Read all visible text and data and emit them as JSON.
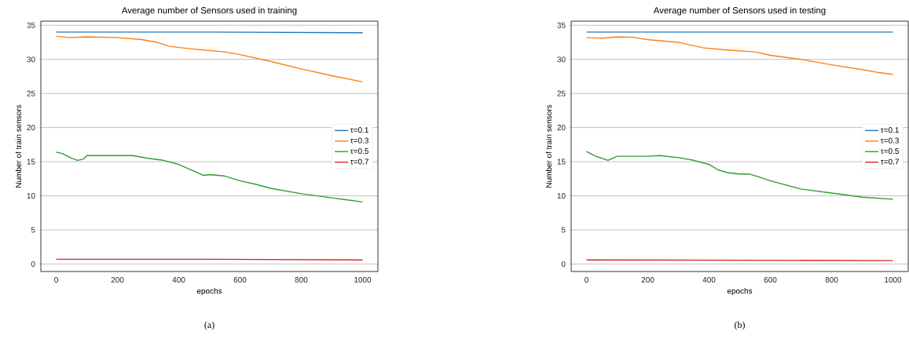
{
  "chart_data": [
    {
      "type": "line",
      "title": "Average number of Sensors used in training",
      "xlabel": "epochs",
      "ylabel": "Number of train sensors",
      "annotations": [
        "(a)"
      ],
      "xlim": [
        -50,
        1050
      ],
      "ylim": [
        -1.1,
        35.6
      ],
      "xticks": [
        0,
        200,
        400,
        600,
        800,
        1000
      ],
      "yticks": [
        0,
        5,
        10,
        15,
        20,
        25,
        30,
        35
      ],
      "grid": "y",
      "legend": "right",
      "series": [
        {
          "name": "τ=0.1",
          "color": "#1f77b4",
          "x": [
            0,
            500,
            1000
          ],
          "values": [
            34.0,
            34.0,
            33.9
          ]
        },
        {
          "name": "τ=0.3",
          "color": "#ff7f0e",
          "x": [
            0,
            40,
            100,
            200,
            280,
            330,
            370,
            450,
            550,
            600,
            700,
            800,
            900,
            1000
          ],
          "values": [
            33.4,
            33.2,
            33.3,
            33.2,
            32.9,
            32.5,
            31.9,
            31.5,
            31.1,
            30.7,
            29.7,
            28.6,
            27.6,
            26.7
          ]
        },
        {
          "name": "τ=0.5",
          "color": "#2ca02c",
          "x": [
            0,
            20,
            50,
            70,
            90,
            100,
            150,
            250,
            300,
            350,
            400,
            450,
            480,
            500,
            550,
            600,
            650,
            700,
            800,
            900,
            950,
            1000
          ],
          "values": [
            16.4,
            16.2,
            15.5,
            15.2,
            15.4,
            15.9,
            15.9,
            15.9,
            15.5,
            15.2,
            14.6,
            13.6,
            13.0,
            13.1,
            12.9,
            12.2,
            11.7,
            11.1,
            10.3,
            9.7,
            9.4,
            9.1
          ]
        },
        {
          "name": "τ=0.7",
          "color": "#d62728",
          "x": [
            0,
            500,
            1000
          ],
          "values": [
            0.7,
            0.7,
            0.6
          ]
        }
      ]
    },
    {
      "type": "line",
      "title": "Average number of Sensors used in testing",
      "xlabel": "epochs",
      "ylabel": "Number of train sensors",
      "annotations": [
        "(b)"
      ],
      "xlim": [
        -50,
        1050
      ],
      "ylim": [
        -1.1,
        35.6
      ],
      "xticks": [
        0,
        200,
        400,
        600,
        800,
        1000
      ],
      "yticks": [
        0,
        5,
        10,
        15,
        20,
        25,
        30,
        35
      ],
      "grid": "y",
      "legend": "right",
      "series": [
        {
          "name": "τ=0.1",
          "color": "#1f77b4",
          "x": [
            0,
            500,
            1000
          ],
          "values": [
            34.0,
            34.0,
            34.0
          ]
        },
        {
          "name": "τ=0.3",
          "color": "#ff7f0e",
          "x": [
            0,
            50,
            100,
            150,
            200,
            300,
            380,
            450,
            550,
            600,
            700,
            800,
            900,
            950,
            1000
          ],
          "values": [
            33.2,
            33.1,
            33.3,
            33.25,
            32.9,
            32.5,
            31.7,
            31.4,
            31.1,
            30.6,
            30.0,
            29.2,
            28.5,
            28.1,
            27.8
          ]
        },
        {
          "name": "τ=0.5",
          "color": "#2ca02c",
          "x": [
            0,
            30,
            70,
            100,
            200,
            240,
            300,
            350,
            400,
            430,
            460,
            500,
            530,
            560,
            600,
            650,
            700,
            800,
            900,
            1000
          ],
          "values": [
            16.5,
            15.8,
            15.2,
            15.8,
            15.8,
            15.9,
            15.6,
            15.2,
            14.6,
            13.8,
            13.4,
            13.2,
            13.2,
            12.8,
            12.2,
            11.6,
            11.0,
            10.4,
            9.8,
            9.5
          ]
        },
        {
          "name": "τ=0.7",
          "color": "#d62728",
          "x": [
            0,
            500,
            1000
          ],
          "values": [
            0.6,
            0.55,
            0.5
          ]
        }
      ]
    }
  ]
}
